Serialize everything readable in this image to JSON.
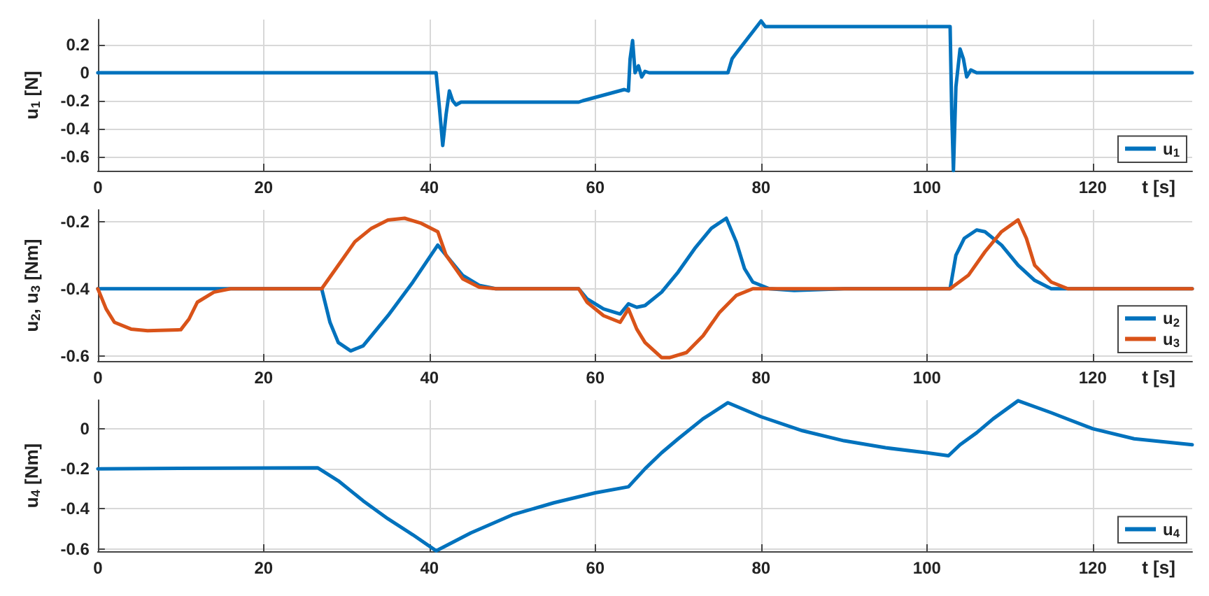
{
  "chart_data": [
    {
      "type": "line",
      "ylabel": "u$_{1}$ [N]",
      "xlabel": "t [s]",
      "xlim": [
        0,
        132
      ],
      "xticks": [
        0,
        20,
        40,
        60,
        80,
        100,
        120
      ],
      "ylim": [
        -0.7,
        0.38
      ],
      "yticks": [
        -0.6,
        -0.4,
        -0.2,
        0,
        0.2
      ],
      "grid": true,
      "legend": "bottom right",
      "marker": "none",
      "line_style": "solid",
      "series": [
        {
          "name": "u$_{1}$",
          "color": "#0072bd",
          "x": [
            0,
            40.8,
            41.2,
            41.6,
            42.0,
            42.4,
            42.8,
            43.2,
            43.8,
            58,
            58.5,
            63.5,
            64.0,
            64.2,
            64.5,
            64.8,
            65.2,
            65.6,
            66.0,
            66.5,
            76,
            76.5,
            77,
            80,
            80.5,
            81,
            102.8,
            103.0,
            103.2,
            103.5,
            104,
            104.4,
            104.8,
            105.3,
            106,
            132
          ],
          "values": [
            0,
            0,
            -0.25,
            -0.52,
            -0.3,
            -0.13,
            -0.2,
            -0.23,
            -0.21,
            -0.21,
            -0.2,
            -0.12,
            -0.13,
            0.1,
            0.23,
            0.0,
            0.05,
            -0.03,
            0.01,
            0,
            0,
            0.1,
            0.14,
            0.37,
            0.33,
            0.33,
            0.33,
            -0.3,
            -0.7,
            -0.1,
            0.17,
            0.1,
            -0.03,
            0.02,
            0,
            0
          ]
        }
      ]
    },
    {
      "type": "line",
      "ylabel": "u$_{2}$, u$_{3}$ [Nm]",
      "xlabel": "t [s]",
      "xlim": [
        0,
        132
      ],
      "xticks": [
        0,
        20,
        40,
        60,
        80,
        100,
        120
      ],
      "ylim": [
        -0.615,
        -0.165
      ],
      "yticks": [
        -0.6,
        -0.4,
        -0.2
      ],
      "grid": true,
      "legend": "bottom right",
      "marker": "none",
      "line_style": "solid",
      "series": [
        {
          "name": "u$_{2}$",
          "color": "#0072bd",
          "x": [
            0,
            27,
            28,
            29,
            30.5,
            32,
            35,
            38,
            41,
            42,
            44,
            46,
            48,
            58,
            59,
            61,
            63,
            64,
            65,
            66,
            68,
            70,
            72,
            74,
            75.8,
            77,
            78,
            79,
            81,
            84,
            90,
            102.8,
            103.5,
            104.5,
            106,
            107,
            109,
            111,
            113,
            115,
            132
          ],
          "values": [
            -0.4,
            -0.4,
            -0.5,
            -0.56,
            -0.585,
            -0.57,
            -0.48,
            -0.38,
            -0.27,
            -0.3,
            -0.36,
            -0.39,
            -0.4,
            -0.4,
            -0.43,
            -0.46,
            -0.475,
            -0.445,
            -0.455,
            -0.45,
            -0.41,
            -0.35,
            -0.28,
            -0.22,
            -0.19,
            -0.26,
            -0.34,
            -0.38,
            -0.4,
            -0.405,
            -0.4,
            -0.4,
            -0.3,
            -0.25,
            -0.225,
            -0.23,
            -0.27,
            -0.33,
            -0.375,
            -0.4,
            -0.4
          ]
        },
        {
          "name": "u$_{3}$",
          "color": "#d95319",
          "x": [
            0,
            1,
            2,
            4,
            6,
            10,
            11,
            12,
            14,
            16,
            27,
            29,
            31,
            33,
            35,
            37,
            39,
            41,
            42,
            44,
            46,
            48,
            58,
            59,
            61,
            63,
            64,
            65,
            66,
            68,
            69,
            71,
            73,
            75,
            77,
            79,
            102.8,
            105,
            107,
            109,
            111,
            112,
            113,
            115,
            117,
            132
          ],
          "values": [
            -0.4,
            -0.46,
            -0.5,
            -0.52,
            -0.525,
            -0.522,
            -0.49,
            -0.44,
            -0.41,
            -0.4,
            -0.4,
            -0.33,
            -0.26,
            -0.22,
            -0.195,
            -0.19,
            -0.205,
            -0.23,
            -0.3,
            -0.37,
            -0.395,
            -0.4,
            -0.4,
            -0.44,
            -0.48,
            -0.5,
            -0.46,
            -0.52,
            -0.56,
            -0.605,
            -0.605,
            -0.59,
            -0.54,
            -0.47,
            -0.42,
            -0.4,
            -0.4,
            -0.36,
            -0.29,
            -0.23,
            -0.195,
            -0.25,
            -0.33,
            -0.38,
            -0.4,
            -0.4
          ]
        }
      ]
    },
    {
      "type": "line",
      "ylabel": "u$_{4}$ [Nm]",
      "xlabel": "t [s]",
      "xlim": [
        0,
        132
      ],
      "xticks": [
        0,
        20,
        40,
        60,
        80,
        100,
        120
      ],
      "ylim": [
        -0.612,
        0.143
      ],
      "yticks": [
        -0.6,
        -0.4,
        -0.2,
        0
      ],
      "grid": true,
      "legend": "bottom right",
      "marker": "none",
      "line_style": "solid",
      "series": [
        {
          "name": "u$_{4}$",
          "color": "#0072bd",
          "x": [
            0,
            26.5,
            29,
            32,
            35,
            38,
            40.8,
            45,
            50,
            55,
            60,
            64,
            66,
            68,
            70,
            73,
            76,
            80,
            85,
            90,
            95,
            100,
            102.6,
            104,
            106,
            108,
            111,
            115,
            120,
            125,
            132
          ],
          "values": [
            -0.2,
            -0.195,
            -0.26,
            -0.36,
            -0.45,
            -0.53,
            -0.61,
            -0.52,
            -0.43,
            -0.37,
            -0.32,
            -0.29,
            -0.2,
            -0.12,
            -0.05,
            0.05,
            0.13,
            0.06,
            -0.01,
            -0.06,
            -0.095,
            -0.12,
            -0.135,
            -0.08,
            -0.02,
            0.05,
            0.14,
            0.08,
            0.0,
            -0.05,
            -0.08
          ]
        }
      ]
    }
  ]
}
